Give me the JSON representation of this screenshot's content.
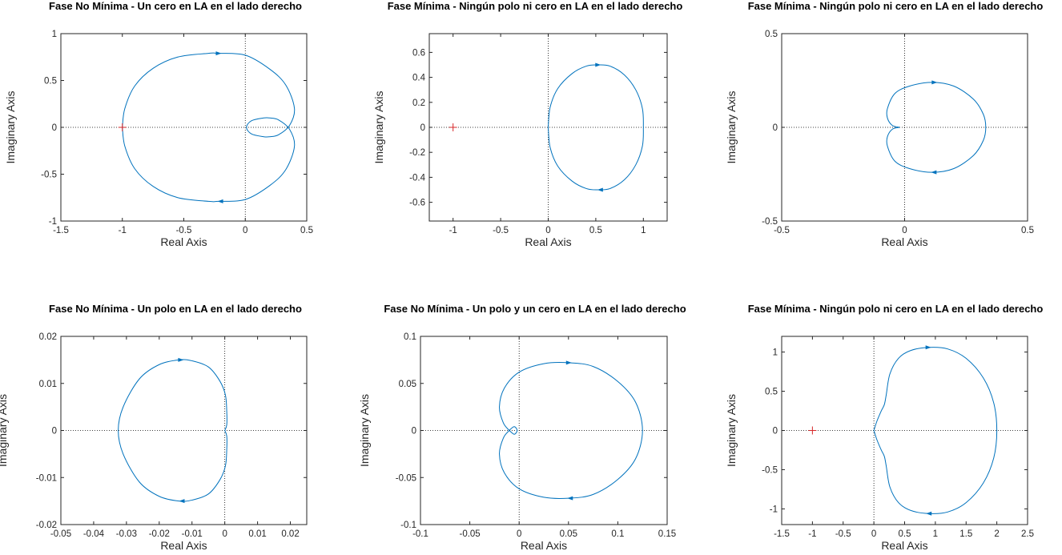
{
  "chart_data": [
    {
      "type": "nyquist",
      "title": "Fase No Mínima - Un cero en LA en el lado derecho",
      "xlabel": "Real Axis",
      "ylabel": "Imaginary Axis",
      "xlim": [
        -1.5,
        0.5
      ],
      "ylim": [
        -1,
        1
      ],
      "xticks": [
        -1.5,
        -1,
        -0.5,
        0,
        0.5
      ],
      "xtick_labels": [
        "-1.5",
        "-1",
        "-0.5",
        "0",
        "0.5"
      ],
      "yticks": [
        -1,
        -0.5,
        0,
        0.5,
        1
      ],
      "ytick_labels": [
        "-1",
        "-0.5",
        "0",
        "0.5",
        "1"
      ],
      "critical_point": [
        -1,
        0
      ],
      "curve_color": "#0072BD",
      "series": [
        {
          "x": [
            -1,
            -0.98,
            -0.9,
            -0.75,
            -0.55,
            -0.3,
            -0.22,
            0,
            0.2,
            0.33,
            0.4,
            0.36,
            0.27,
            0.2,
            0.15,
            0.05,
            0.01,
            0.05,
            0.15,
            0.2,
            0.27,
            0.36,
            0.4,
            0.33,
            0.2,
            0,
            -0.22,
            -0.3,
            -0.55,
            -0.75,
            -0.9,
            -0.98,
            -1
          ],
          "y": [
            0,
            0.2,
            0.44,
            0.63,
            0.75,
            0.79,
            0.79,
            0.77,
            0.62,
            0.45,
            0.2,
            0.02,
            -0.08,
            -0.1,
            -0.1,
            -0.07,
            0,
            0.07,
            0.1,
            0.1,
            0.08,
            -0.02,
            -0.2,
            -0.45,
            -0.62,
            -0.77,
            -0.79,
            -0.79,
            -0.75,
            -0.63,
            -0.44,
            -0.2,
            0
          ]
        }
      ],
      "arrows": [
        {
          "x": -0.22,
          "y": 0.79,
          "dir": "right"
        },
        {
          "x": -0.2,
          "y": -0.79,
          "dir": "left"
        }
      ]
    },
    {
      "type": "nyquist",
      "title": "Fase Mínima - Ningún polo ni cero en LA en el lado derecho",
      "xlabel": "Real Axis",
      "ylabel": "Imaginary Axis",
      "xlim": [
        -1.25,
        1.25
      ],
      "ylim": [
        -0.75,
        0.75
      ],
      "xticks": [
        -1,
        -0.5,
        0,
        0.5,
        1
      ],
      "xtick_labels": [
        "-1",
        "-0.5",
        "0",
        "0.5",
        "1"
      ],
      "yticks": [
        -0.6,
        -0.4,
        -0.2,
        0,
        0.2,
        0.4,
        0.6
      ],
      "ytick_labels": [
        "-0.6",
        "-0.4",
        "-0.2",
        "0",
        "0.2",
        "0.4",
        "0.6"
      ],
      "critical_point": [
        -1,
        0
      ],
      "curve_color": "#0072BD",
      "series": [
        {
          "x": [
            0,
            0.02,
            0.1,
            0.25,
            0.4,
            0.52,
            0.65,
            0.8,
            0.92,
            0.99,
            1,
            0.99,
            0.92,
            0.8,
            0.65,
            0.52,
            0.4,
            0.25,
            0.1,
            0.02,
            0
          ],
          "y": [
            0,
            0.16,
            0.31,
            0.43,
            0.49,
            0.5,
            0.49,
            0.42,
            0.3,
            0.15,
            0,
            -0.15,
            -0.3,
            -0.42,
            -0.49,
            -0.5,
            -0.49,
            -0.43,
            -0.31,
            -0.16,
            0
          ]
        }
      ],
      "arrows": [
        {
          "x": 0.52,
          "y": 0.5,
          "dir": "right"
        },
        {
          "x": 0.55,
          "y": -0.5,
          "dir": "left"
        }
      ]
    },
    {
      "type": "nyquist",
      "title": "Fase Mínima - Ningún polo ni cero en LA en el lado derecho",
      "xlabel": "Real Axis",
      "ylabel": "Imaginary Axis",
      "xlim": [
        -0.5,
        0.5
      ],
      "ylim": [
        -0.5,
        0.5
      ],
      "xticks": [
        -0.5,
        0,
        0.5
      ],
      "xtick_labels": [
        "-0.5",
        "0",
        "0.5"
      ],
      "yticks": [
        -0.5,
        0,
        0.5
      ],
      "ytick_labels": [
        "-0.5",
        "0",
        "0.5"
      ],
      "critical_point": null,
      "curve_color": "#0072BD",
      "series": [
        {
          "x": [
            -0.02,
            -0.05,
            -0.07,
            -0.07,
            -0.04,
            0.02,
            0.11,
            0.2,
            0.28,
            0.32,
            0.33,
            0.32,
            0.28,
            0.2,
            0.11,
            0.02,
            -0.04,
            -0.07,
            -0.07,
            -0.05,
            -0.02
          ],
          "y": [
            0,
            0.01,
            0.05,
            0.1,
            0.18,
            0.22,
            0.24,
            0.22,
            0.15,
            0.07,
            0,
            -0.07,
            -0.15,
            -0.22,
            -0.24,
            -0.22,
            -0.18,
            -0.1,
            -0.05,
            -0.01,
            0
          ]
        }
      ],
      "arrows": [
        {
          "x": 0.12,
          "y": 0.24,
          "dir": "right"
        },
        {
          "x": 0.12,
          "y": -0.24,
          "dir": "left"
        }
      ]
    },
    {
      "type": "nyquist",
      "title": "Fase No Mínima - Un polo en LA en el lado derecho",
      "xlabel": "Real Axis",
      "ylabel": "Imaginary Axis",
      "xlim": [
        -0.05,
        0.025
      ],
      "ylim": [
        -0.02,
        0.02
      ],
      "xticks": [
        -0.05,
        -0.04,
        -0.03,
        -0.02,
        -0.01,
        0,
        0.01,
        0.02
      ],
      "xtick_labels": [
        "-0.05",
        "-0.04",
        "-0.03",
        "-0.02",
        "-0.01",
        "0",
        "0.01",
        "0.02"
      ],
      "yticks": [
        -0.02,
        -0.01,
        0,
        0.01,
        0.02
      ],
      "ytick_labels": [
        "-0.02",
        "-0.01",
        "0",
        "0.01",
        "0.02"
      ],
      "critical_point": null,
      "curve_color": "#0072BD",
      "series": [
        {
          "x": [
            0,
            0.0006,
            0.0006,
            0.0002,
            -0.0015,
            -0.005,
            -0.01,
            -0.014,
            -0.02,
            -0.026,
            -0.031,
            -0.0325,
            -0.031,
            -0.026,
            -0.02,
            -0.014,
            -0.01,
            -0.005,
            -0.0015,
            0.0002,
            0.0006,
            0.0006,
            0
          ],
          "y": [
            0,
            0.0012,
            0.004,
            0.0075,
            0.0105,
            0.0135,
            0.0148,
            0.015,
            0.014,
            0.011,
            0.005,
            0,
            -0.005,
            -0.011,
            -0.014,
            -0.015,
            -0.0148,
            -0.0135,
            -0.0105,
            -0.0075,
            -0.004,
            -0.0012,
            0
          ]
        }
      ],
      "arrows": [
        {
          "x": -0.0135,
          "y": 0.015,
          "dir": "right"
        },
        {
          "x": -0.013,
          "y": -0.015,
          "dir": "left"
        }
      ]
    },
    {
      "type": "nyquist",
      "title": "Fase No Mínima - Un polo y un cero en LA en el lado derecho",
      "xlabel": "Real Axis",
      "ylabel": "Imaginary Axis",
      "xlim": [
        -0.1,
        0.15
      ],
      "ylim": [
        -0.1,
        0.1
      ],
      "xticks": [
        -0.1,
        -0.05,
        0,
        0.05,
        0.1,
        0.15
      ],
      "xtick_labels": [
        "-0.1",
        "-0.05",
        "0",
        "0.05",
        "0.1",
        "0.15"
      ],
      "yticks": [
        -0.1,
        -0.05,
        0,
        0.05,
        0.1
      ],
      "ytick_labels": [
        "-0.1",
        "-0.05",
        "0",
        "0.05",
        "0.1"
      ],
      "critical_point": null,
      "curve_color": "#0072BD",
      "series": [
        {
          "x": [
            -0.01,
            -0.016,
            -0.02,
            -0.015,
            0,
            0.025,
            0.05,
            0.075,
            0.1,
            0.118,
            0.125,
            0.118,
            0.1,
            0.075,
            0.05,
            0.025,
            0,
            -0.015,
            -0.02,
            -0.016,
            -0.01,
            -0.005,
            -0.002,
            -0.005,
            -0.01
          ],
          "y": [
            0,
            0.008,
            0.025,
            0.045,
            0.062,
            0.071,
            0.072,
            0.068,
            0.052,
            0.03,
            0,
            -0.03,
            -0.052,
            -0.068,
            -0.072,
            -0.071,
            -0.062,
            -0.045,
            -0.025,
            -0.008,
            0,
            0.004,
            0,
            -0.004,
            0
          ]
        }
      ],
      "arrows": [
        {
          "x": 0.05,
          "y": 0.072,
          "dir": "right"
        },
        {
          "x": 0.052,
          "y": -0.072,
          "dir": "left"
        }
      ]
    },
    {
      "type": "nyquist",
      "title": "Fase Mínima - Ningún polo ni cero en LA en el lado derecho",
      "xlabel": "Real Axis",
      "ylabel": "Imaginary Axis",
      "xlim": [
        -1.5,
        2.5
      ],
      "ylim": [
        -1.2,
        1.2
      ],
      "xticks": [
        -1.5,
        -1,
        -0.5,
        0,
        0.5,
        1,
        1.5,
        2,
        2.5
      ],
      "xtick_labels": [
        "-1.5",
        "-1",
        "-0.5",
        "0",
        "0.5",
        "1",
        "1.5",
        "2",
        "2.5"
      ],
      "yticks": [
        -1,
        -0.5,
        0,
        0.5,
        1
      ],
      "ytick_labels": [
        "-1",
        "-0.5",
        "0",
        "0.5",
        "1"
      ],
      "critical_point": [
        -1,
        0
      ],
      "curve_color": "#0072BD",
      "series": [
        {
          "x": [
            0,
            0.05,
            0.12,
            0.17,
            0.2,
            0.26,
            0.4,
            0.6,
            0.9,
            1.2,
            1.5,
            1.78,
            1.95,
            2,
            1.95,
            1.78,
            1.5,
            1.2,
            0.9,
            0.6,
            0.4,
            0.26,
            0.2,
            0.17,
            0.12,
            0.05,
            0
          ],
          "y": [
            0,
            0.12,
            0.25,
            0.33,
            0.45,
            0.72,
            0.92,
            1.02,
            1.06,
            1.04,
            0.92,
            0.67,
            0.35,
            0,
            -0.35,
            -0.67,
            -0.92,
            -1.04,
            -1.06,
            -1.02,
            -0.92,
            -0.72,
            -0.45,
            -0.33,
            -0.25,
            -0.12,
            0
          ]
        }
      ],
      "arrows": [
        {
          "x": 0.88,
          "y": 1.06,
          "dir": "right"
        },
        {
          "x": 0.9,
          "y": -1.06,
          "dir": "left"
        }
      ]
    }
  ]
}
